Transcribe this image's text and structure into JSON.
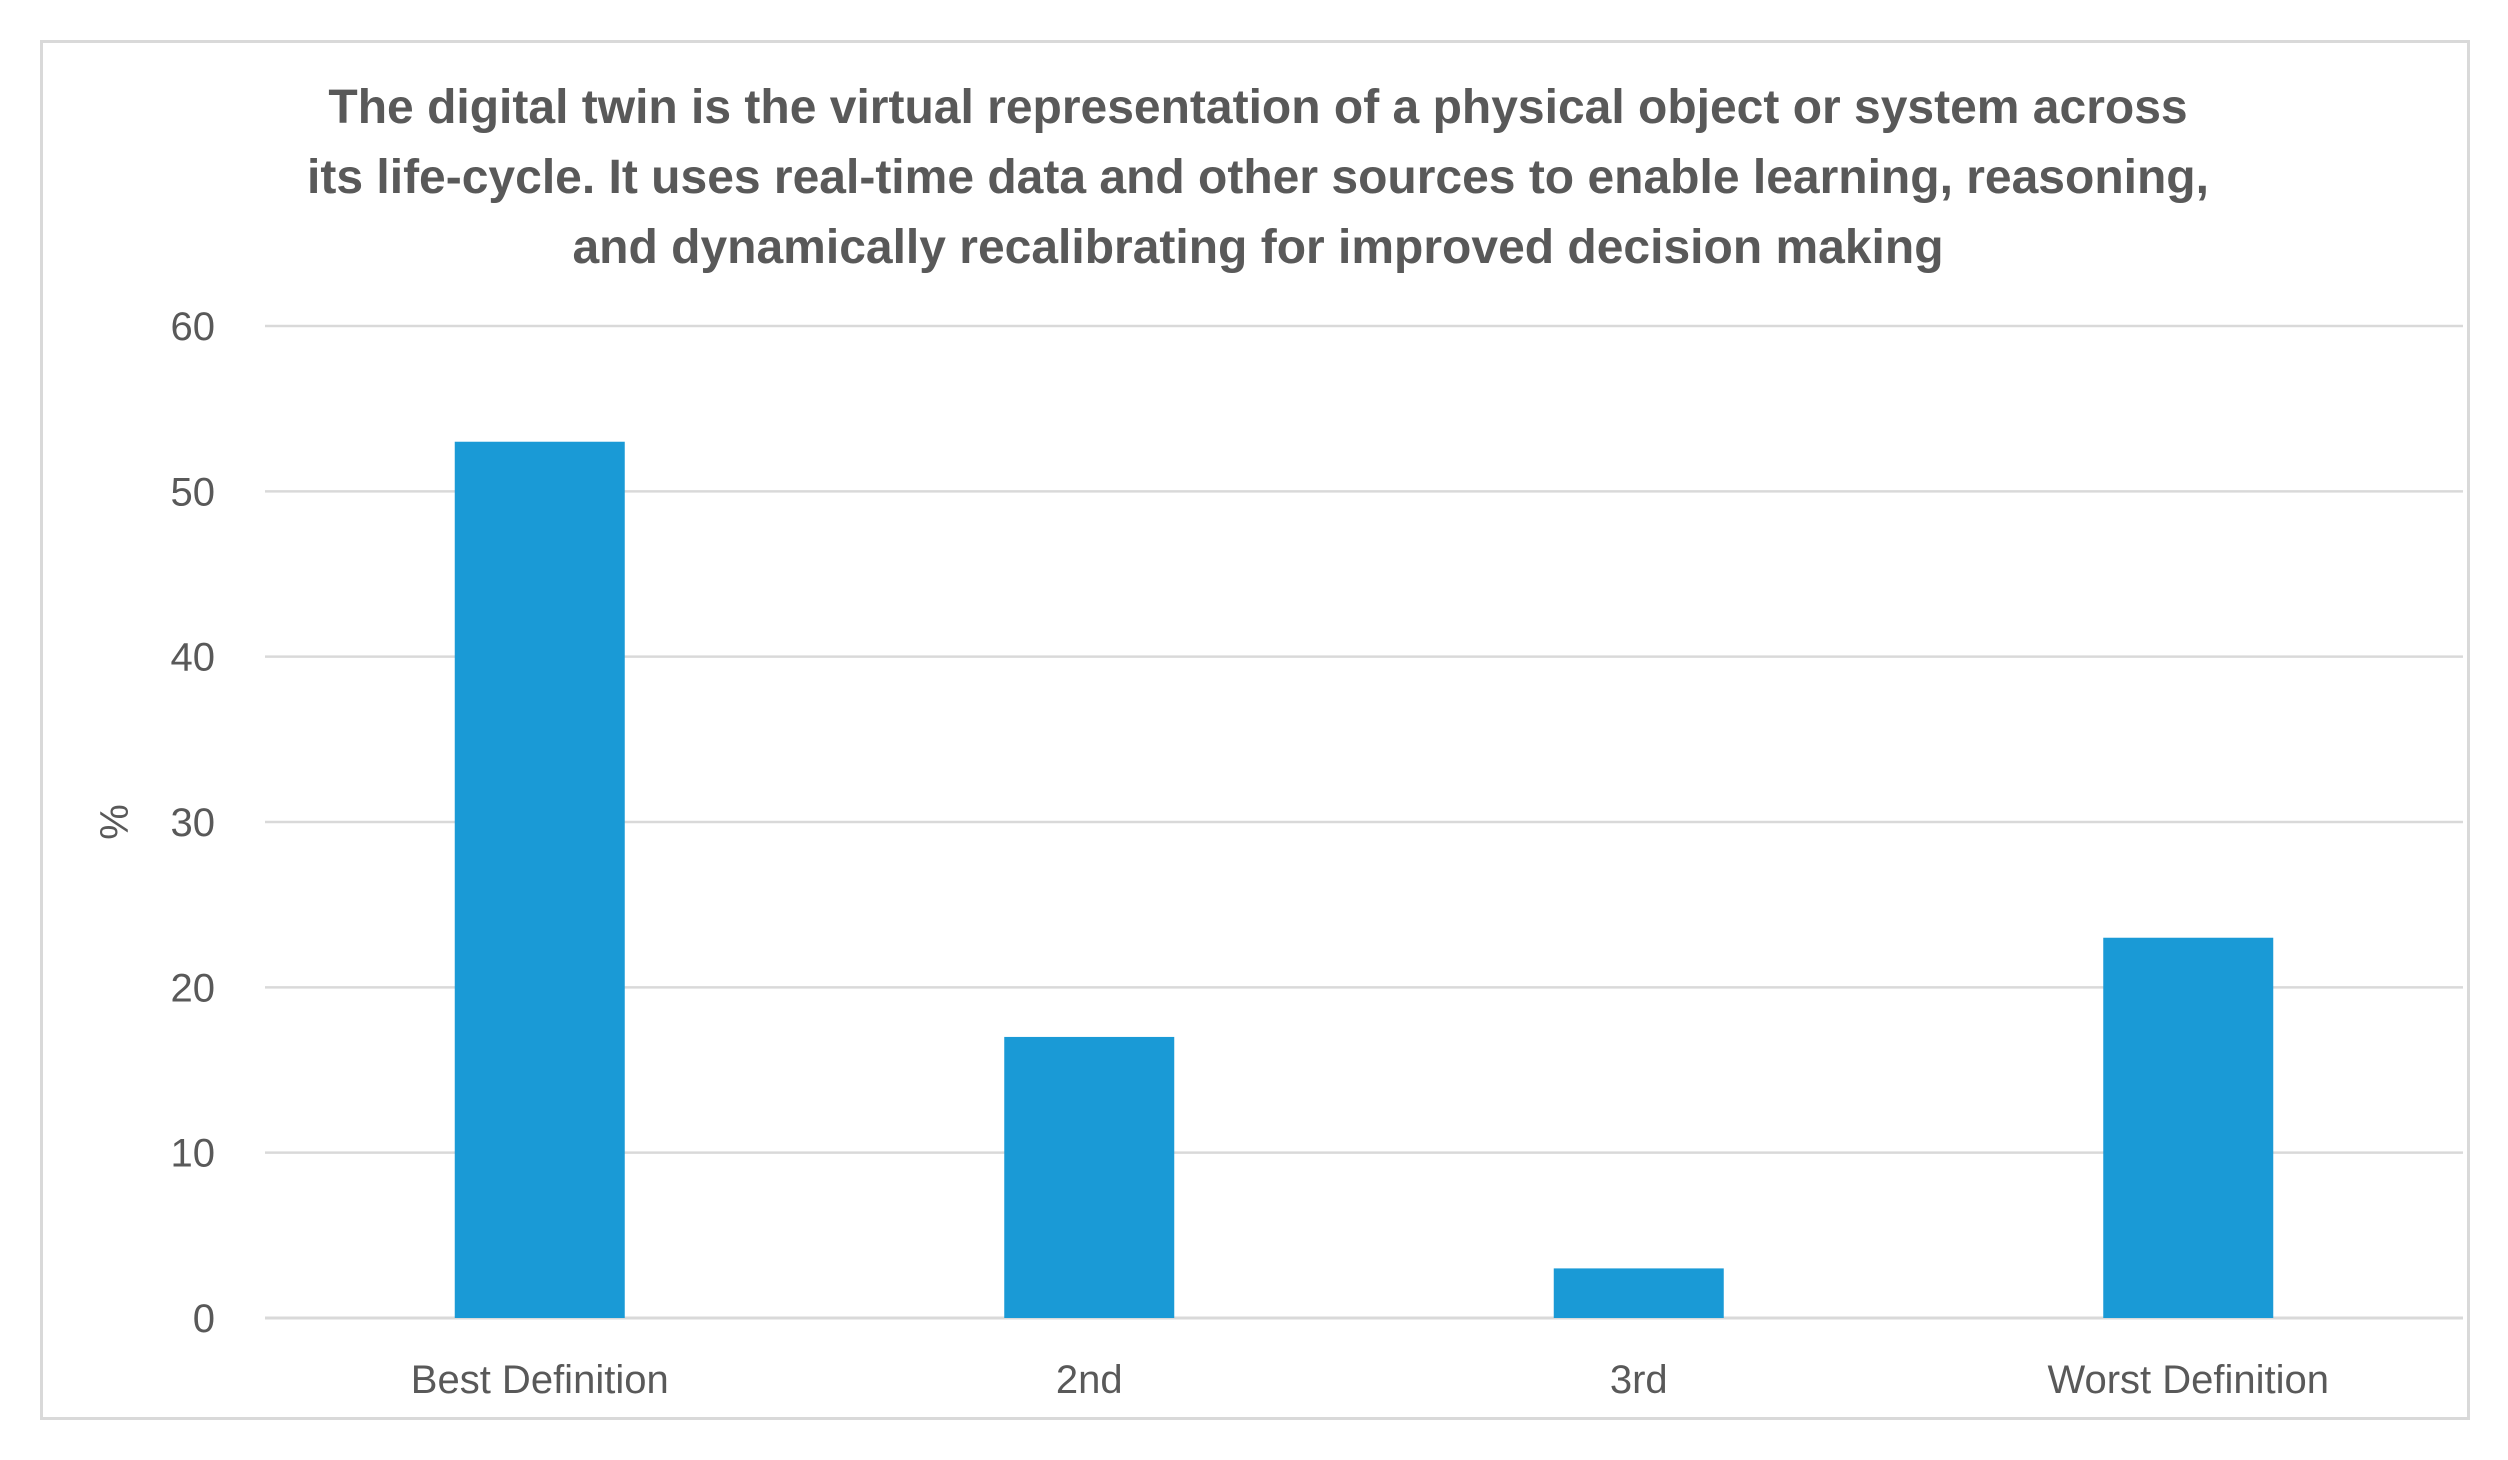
{
  "chart_data": {
    "type": "bar",
    "title_lines": [
      "The digital twin is the virtual representation of a physical object or system across",
      "its life-cycle. It uses real-time data and other sources to enable learning, reasoning,",
      "and dynamically recalibrating for improved decision making"
    ],
    "categories": [
      "Best Definition",
      "2nd",
      "3rd",
      "Worst Definition"
    ],
    "values": [
      53,
      17,
      3,
      23
    ],
    "xlabel": "",
    "ylabel": "%",
    "ylim": [
      0,
      60
    ],
    "yticks": [
      0,
      10,
      20,
      30,
      40,
      50,
      60
    ],
    "grid": true,
    "legend": "none",
    "bar_color": "#1a9ad6",
    "grid_color": "#d9d9d9",
    "text_color": "#595959"
  }
}
